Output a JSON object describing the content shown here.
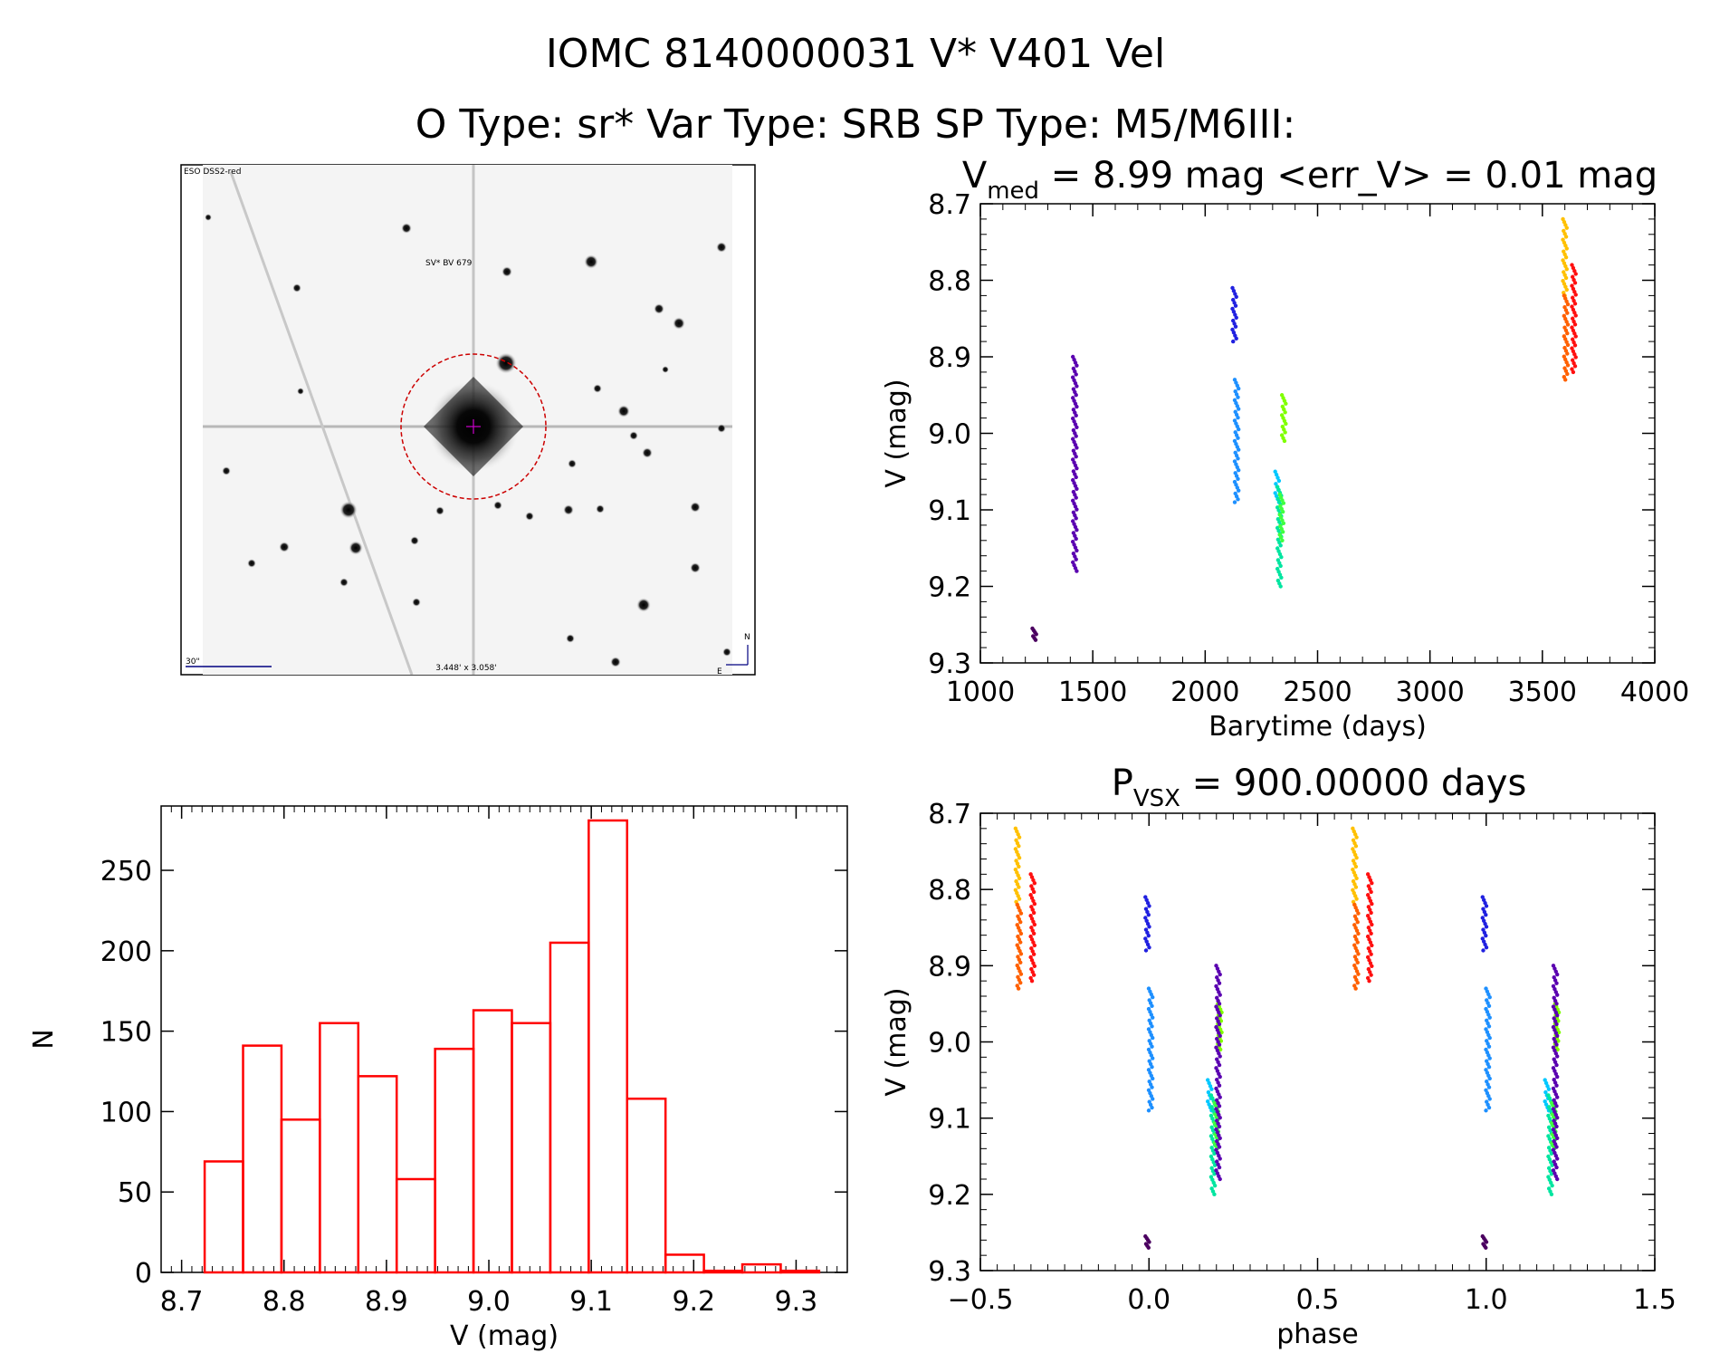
{
  "header": {
    "title": "IOMC 8140000031    V* V401 Vel",
    "subtitle": "O Type: sr*  Var Type: SRB  SP Type: M5/M6III:"
  },
  "finder": {
    "survey_label": "ESO DSS2-red",
    "target_label": "SV* BV 679",
    "scale_label": "30\"",
    "fov_label": "3.448' x 3.058'",
    "north_label": "N",
    "east_label": "E"
  },
  "colors": {
    "histogram": "#ff0000",
    "axis": "#000000",
    "finder_marker": "#cc0000",
    "finder_text": "#000080"
  },
  "chart_data": [
    {
      "id": "lightcurve",
      "type": "scatter",
      "title_main": "V",
      "title_sub": "med",
      "title_rest": " = 8.99 mag <err_V> = 0.01 mag",
      "xlabel": "Barytime (days)",
      "ylabel": "V (mag)",
      "xlim": [
        1000,
        4000
      ],
      "ylim": [
        9.3,
        8.7
      ],
      "y_inverted": true,
      "xticks": [
        1000,
        1500,
        2000,
        2500,
        3000,
        3500,
        4000
      ],
      "yticks": [
        8.7,
        8.8,
        8.9,
        9.0,
        9.1,
        9.2,
        9.3
      ],
      "groups": [
        {
          "x": 1240,
          "ymin": 9.255,
          "ymax": 9.27,
          "color": "#4b0060"
        },
        {
          "x": 1420,
          "ymin": 8.9,
          "ymax": 9.18,
          "color": "#5a00b0"
        },
        {
          "x": 2130,
          "ymin": 8.81,
          "ymax": 8.88,
          "color": "#2020e0"
        },
        {
          "x": 2140,
          "ymin": 8.93,
          "ymax": 9.09,
          "color": "#1e90ff"
        },
        {
          "x": 2320,
          "ymin": 9.05,
          "ymax": 9.09,
          "color": "#00c8ff"
        },
        {
          "x": 2330,
          "ymin": 9.07,
          "ymax": 9.2,
          "color": "#00e5a0"
        },
        {
          "x": 2340,
          "ymin": 9.08,
          "ymax": 9.14,
          "color": "#40ff40"
        },
        {
          "x": 2350,
          "ymin": 8.95,
          "ymax": 9.01,
          "color": "#80ff00"
        },
        {
          "x": 3600,
          "ymin": 8.72,
          "ymax": 8.82,
          "color": "#ffc000"
        },
        {
          "x": 3605,
          "ymin": 8.82,
          "ymax": 8.93,
          "color": "#ff6000"
        },
        {
          "x": 3640,
          "ymin": 8.78,
          "ymax": 8.92,
          "color": "#ff1010"
        }
      ]
    },
    {
      "id": "histogram",
      "type": "bar",
      "xlabel": "V (mag)",
      "ylabel": "N",
      "xlim": [
        8.68,
        9.35
      ],
      "ylim": [
        0,
        290
      ],
      "xticks": [
        8.7,
        8.8,
        8.9,
        9.0,
        9.1,
        9.2,
        9.3
      ],
      "yticks": [
        0,
        50,
        100,
        150,
        200,
        250
      ],
      "bin_width": 0.0375,
      "bin_starts": [
        8.7225,
        8.76,
        8.7975,
        8.835,
        8.8725,
        8.91,
        8.9475,
        8.985,
        9.0225,
        9.06,
        9.0975,
        9.135,
        9.1725,
        9.21,
        9.2475,
        9.285
      ],
      "values": [
        69,
        141,
        95,
        155,
        122,
        58,
        139,
        163,
        155,
        205,
        281,
        108,
        11,
        1,
        5,
        1
      ]
    },
    {
      "id": "phased",
      "type": "scatter",
      "title_main": "P",
      "title_sub": "VSX",
      "title_rest": " = 900.00000 days",
      "xlabel": "phase",
      "ylabel": "V (mag)",
      "xlim": [
        -0.5,
        1.5
      ],
      "ylim": [
        9.3,
        8.7
      ],
      "y_inverted": true,
      "xticks": [
        -0.5,
        0.0,
        0.5,
        1.0,
        1.5
      ],
      "xtick_labels": [
        "−0.5",
        "0.0",
        "0.5",
        "1.0",
        "1.5"
      ],
      "yticks": [
        8.7,
        8.8,
        8.9,
        9.0,
        9.1,
        9.2,
        9.3
      ],
      "groups": [
        {
          "x": -0.39,
          "ymin": 8.72,
          "ymax": 8.82,
          "color": "#ffc000"
        },
        {
          "x": -0.385,
          "ymin": 8.82,
          "ymax": 8.93,
          "color": "#ff6000"
        },
        {
          "x": -0.345,
          "ymin": 8.78,
          "ymax": 8.92,
          "color": "#ff1010"
        },
        {
          "x": -0.005,
          "ymin": 8.81,
          "ymax": 8.88,
          "color": "#2020e0"
        },
        {
          "x": 0.005,
          "ymin": 8.93,
          "ymax": 9.09,
          "color": "#1e90ff"
        },
        {
          "x": -0.005,
          "ymin": 9.255,
          "ymax": 9.27,
          "color": "#4b0060"
        },
        {
          "x": 0.18,
          "ymin": 9.05,
          "ymax": 9.09,
          "color": "#00c8ff"
        },
        {
          "x": 0.19,
          "ymin": 9.07,
          "ymax": 9.2,
          "color": "#00e5a0"
        },
        {
          "x": 0.2,
          "ymin": 9.08,
          "ymax": 9.14,
          "color": "#40ff40"
        },
        {
          "x": 0.21,
          "ymin": 8.95,
          "ymax": 9.01,
          "color": "#80ff00"
        },
        {
          "x": 0.205,
          "ymin": 8.9,
          "ymax": 9.18,
          "color": "#5a00b0"
        },
        {
          "x": 0.61,
          "ymin": 8.72,
          "ymax": 8.82,
          "color": "#ffc000"
        },
        {
          "x": 0.615,
          "ymin": 8.82,
          "ymax": 8.93,
          "color": "#ff6000"
        },
        {
          "x": 0.655,
          "ymin": 8.78,
          "ymax": 8.92,
          "color": "#ff1010"
        },
        {
          "x": 0.995,
          "ymin": 8.81,
          "ymax": 8.88,
          "color": "#2020e0"
        },
        {
          "x": 1.005,
          "ymin": 8.93,
          "ymax": 9.09,
          "color": "#1e90ff"
        },
        {
          "x": 0.995,
          "ymin": 9.255,
          "ymax": 9.27,
          "color": "#4b0060"
        },
        {
          "x": 1.18,
          "ymin": 9.05,
          "ymax": 9.09,
          "color": "#00c8ff"
        },
        {
          "x": 1.19,
          "ymin": 9.07,
          "ymax": 9.2,
          "color": "#00e5a0"
        },
        {
          "x": 1.2,
          "ymin": 9.08,
          "ymax": 9.14,
          "color": "#40ff40"
        },
        {
          "x": 1.21,
          "ymin": 8.95,
          "ymax": 9.01,
          "color": "#80ff00"
        },
        {
          "x": 1.205,
          "ymin": 8.9,
          "ymax": 9.18,
          "color": "#5a00b0"
        }
      ]
    }
  ]
}
